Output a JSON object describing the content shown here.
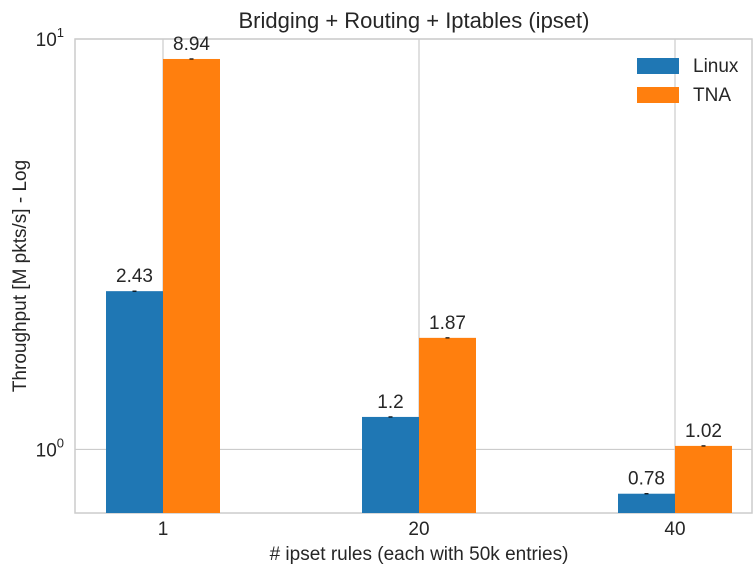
{
  "chart_data": {
    "type": "bar",
    "title": "Bridging + Routing + Iptables (ipset)",
    "xlabel": "# ipset rules (each with 50k entries)",
    "ylabel": "Throughput [M pkts/s] - Log",
    "yscale": "log",
    "ylim": [
      0.7,
      10
    ],
    "yticks": [
      {
        "base": "10",
        "exp": "0"
      },
      {
        "base": "10",
        "exp": "1"
      }
    ],
    "categories": [
      "1",
      "20",
      "40"
    ],
    "series": [
      {
        "name": "Linux",
        "color": "#1f77b4",
        "values": [
          2.43,
          1.2,
          0.78
        ],
        "labels": [
          "2.43",
          "1.2",
          "0.78"
        ]
      },
      {
        "name": "TNA",
        "color": "#ff7f0e",
        "values": [
          8.94,
          1.87,
          1.02
        ],
        "labels": [
          "8.94",
          "1.87",
          "1.02"
        ]
      }
    ],
    "grid": true,
    "legend_position": "top-right"
  }
}
